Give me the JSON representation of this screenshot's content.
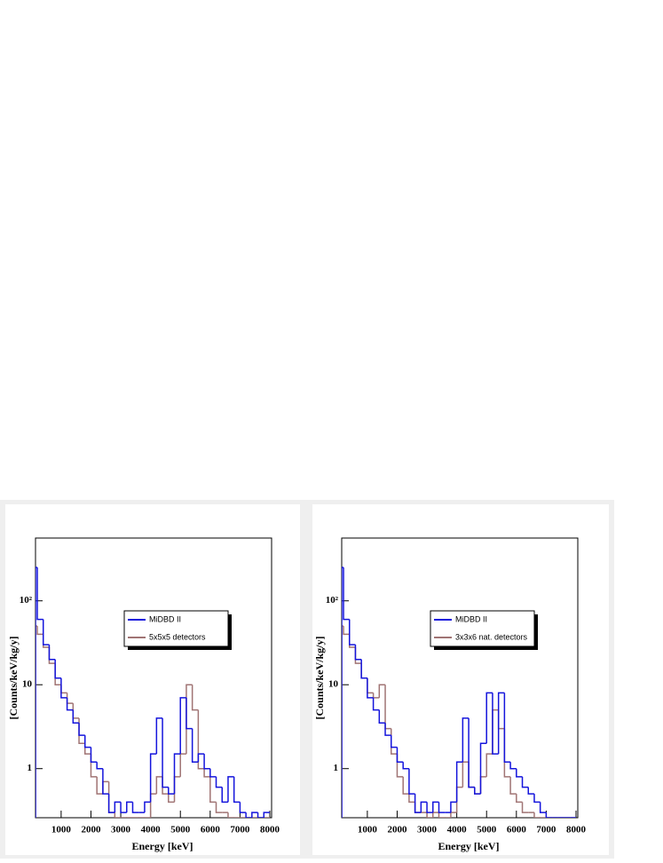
{
  "chart_data": [
    {
      "type": "histogram",
      "xlabel": "Energy [keV]",
      "ylabel": "[Counts/keV/kg/y]",
      "log_y": true,
      "legend": "center",
      "xlim": [
        140,
        8060
      ],
      "ylim": [
        0.26,
        560
      ],
      "xticks": [
        1000,
        2000,
        3000,
        4000,
        5000,
        6000,
        7000,
        8000
      ],
      "yticks": [
        1,
        10,
        {
          "value": 100,
          "label": "10²"
        }
      ],
      "bins": [
        140,
        200,
        400,
        600,
        800,
        1000,
        1200,
        1400,
        1600,
        1800,
        2000,
        2200,
        2400,
        2600,
        2800,
        3000,
        3200,
        3400,
        3600,
        3800,
        4000,
        4200,
        4400,
        4600,
        4800,
        5000,
        5200,
        5400,
        5600,
        5800,
        6000,
        6200,
        6400,
        6600,
        6800,
        7000,
        7200,
        7400,
        7600,
        7800,
        8000
      ],
      "series": [
        {
          "name": "MiDBD II",
          "color": "#1414dc",
          "values": [
            250,
            60,
            30,
            20,
            12,
            7,
            5,
            3.5,
            2.5,
            1.8,
            1.2,
            1,
            0.5,
            0.3,
            0.4,
            0.3,
            0.4,
            0.3,
            0.3,
            0.4,
            1.5,
            4,
            0.6,
            0.5,
            1.5,
            7,
            3,
            1.2,
            1.5,
            1,
            0.8,
            0.6,
            0.4,
            0.8,
            0.4,
            0.3,
            0,
            0.3,
            0,
            0.3
          ]
        },
        {
          "name": "5x5x5 detectors",
          "color": "#a07474",
          "values": [
            50,
            40,
            28,
            18,
            10,
            8,
            6,
            4,
            2,
            1.5,
            0.8,
            0.5,
            0.7,
            0.3,
            0,
            0,
            0,
            0,
            0,
            0,
            0.5,
            0.8,
            0.5,
            0.4,
            0.8,
            1.5,
            10,
            5,
            1,
            0.8,
            0.4,
            0.3,
            0.3,
            0,
            0,
            0,
            0,
            0,
            0,
            0
          ]
        }
      ]
    },
    {
      "type": "histogram",
      "xlabel": "Energy [keV]",
      "ylabel": "[Counts/keV/kg/y]",
      "log_y": true,
      "legend": "center",
      "xlim": [
        140,
        8060
      ],
      "ylim": [
        0.26,
        560
      ],
      "xticks": [
        1000,
        2000,
        3000,
        4000,
        5000,
        6000,
        7000,
        8000
      ],
      "yticks": [
        1,
        10,
        {
          "value": 100,
          "label": "10²"
        }
      ],
      "bins": [
        140,
        200,
        400,
        600,
        800,
        1000,
        1200,
        1400,
        1600,
        1800,
        2000,
        2200,
        2400,
        2600,
        2800,
        3000,
        3200,
        3400,
        3600,
        3800,
        4000,
        4200,
        4400,
        4600,
        4800,
        5000,
        5200,
        5400,
        5600,
        5800,
        6000,
        6200,
        6400,
        6600,
        6800,
        7000,
        7200,
        7400,
        7600,
        7800,
        8000
      ],
      "series": [
        {
          "name": "MiDBD II",
          "color": "#1414dc",
          "values": [
            250,
            60,
            30,
            20,
            12,
            7,
            5,
            3.5,
            2.5,
            1.8,
            1.2,
            1,
            0.5,
            0.3,
            0.4,
            0.3,
            0.4,
            0.3,
            0.3,
            0.4,
            1.2,
            4,
            0.6,
            0.5,
            2,
            8,
            1.5,
            8,
            1.2,
            1,
            0.8,
            0.6,
            0.5,
            0.4,
            0.3,
            0,
            0,
            0,
            0,
            0
          ]
        },
        {
          "name": "3x3x6 nat. detectors",
          "color": "#a07474",
          "values": [
            50,
            40,
            28,
            18,
            12,
            8,
            7,
            10,
            3,
            1.5,
            0.8,
            0.5,
            0.4,
            0.3,
            0.3,
            0,
            0.3,
            0,
            0,
            0.3,
            0.6,
            1.2,
            0.6,
            0.5,
            0.8,
            1.5,
            5,
            3,
            0.8,
            0.5,
            0.4,
            0.3,
            0.3,
            0,
            0,
            0,
            0,
            0,
            0,
            0
          ]
        }
      ]
    }
  ]
}
